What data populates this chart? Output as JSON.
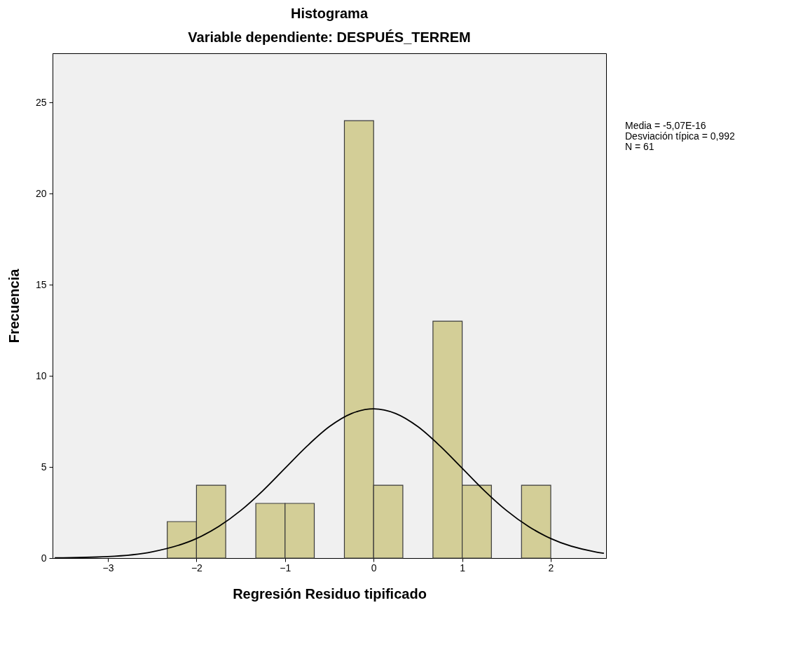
{
  "chart_data": {
    "type": "histogram",
    "title": "Histograma",
    "subtitle": "Variable dependiente: DESPUÉS_TERREM",
    "xlabel": "Regresión Residuo tipificado",
    "ylabel": "Frecuencia",
    "annotations": [
      "Media = -5,07E-16",
      "Desviación típica = 0,992",
      "N = 61"
    ],
    "bins": [
      -2.33,
      -2,
      -1.67,
      -1.33,
      -1,
      -0.67,
      -0.33,
      0,
      0.33,
      0.67,
      1,
      1.33,
      1.67,
      2
    ],
    "values": [
      2,
      4,
      0,
      3,
      3,
      0,
      24,
      4,
      0,
      13,
      4,
      0,
      4
    ],
    "color": "#d3ce97",
    "series": [
      {
        "type": "line",
        "color": "#000000",
        "x": [
          -3.6,
          -3,
          -2.5,
          -2,
          -1.75,
          -1.5,
          -1.25,
          -1,
          -0.75,
          -0.5,
          -0.25,
          0,
          0.25,
          0.5,
          0.75,
          1,
          1.25,
          1.5,
          1.75,
          2,
          2.5,
          2.6
        ],
        "values": [
          0.01,
          0.08,
          0.34,
          1.07,
          1.73,
          2.61,
          3.7,
          4.93,
          6.15,
          7.21,
          7.93,
          8.19,
          7.93,
          7.21,
          6.15,
          4.93,
          3.7,
          2.61,
          1.73,
          1.07,
          0.34,
          0.26
        ]
      }
    ],
    "xlim": [
      -3.625,
      2.625
    ],
    "xticks": [
      -3,
      -2,
      -1,
      0,
      1,
      2
    ],
    "ylim": [
      0,
      27.7
    ],
    "yticks": [
      0,
      5,
      10,
      15,
      20,
      25
    ]
  }
}
